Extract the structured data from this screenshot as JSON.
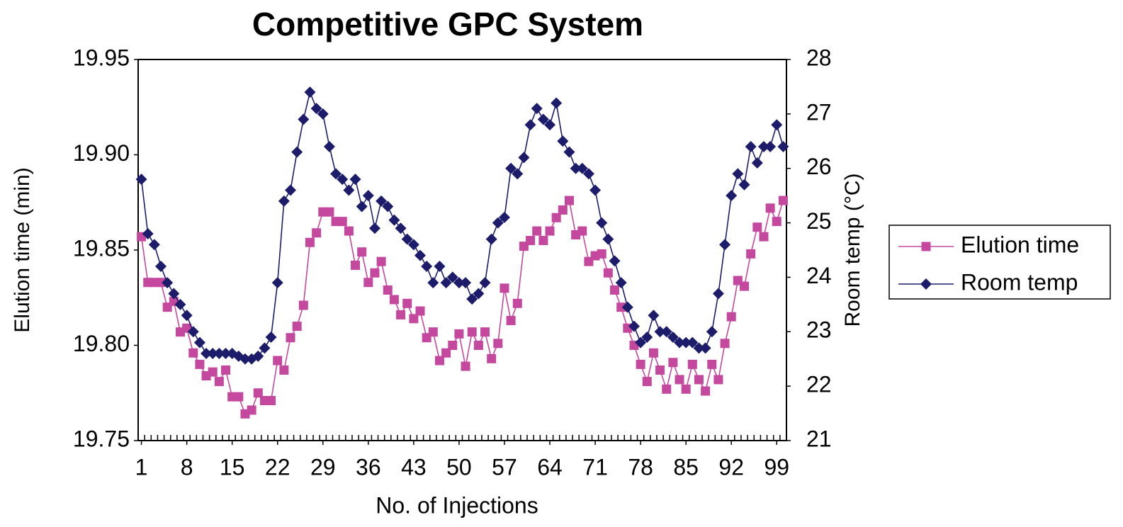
{
  "chart_data": {
    "type": "line",
    "title": "Competitive GPC System",
    "x_label": "No. of Injections",
    "y_label": "Elution time (min)",
    "y2_label": "Room temp (°C)",
    "x": [
      1,
      2,
      3,
      4,
      5,
      6,
      7,
      8,
      9,
      10,
      11,
      12,
      13,
      14,
      15,
      16,
      17,
      18,
      19,
      20,
      21,
      22,
      23,
      24,
      25,
      26,
      27,
      28,
      29,
      30,
      31,
      32,
      33,
      34,
      35,
      36,
      37,
      38,
      39,
      40,
      41,
      42,
      43,
      44,
      45,
      46,
      47,
      48,
      49,
      50,
      51,
      52,
      53,
      54,
      55,
      56,
      57,
      58,
      59,
      60,
      61,
      62,
      63,
      64,
      65,
      66,
      67,
      68,
      69,
      70,
      71,
      72,
      73,
      74,
      75,
      76,
      77,
      78,
      79,
      80,
      81,
      82,
      83,
      84,
      85,
      86,
      87,
      88,
      89,
      90,
      91,
      92,
      93,
      94,
      95,
      96,
      97,
      98,
      99,
      100
    ],
    "xlim": [
      0.5,
      100.5
    ],
    "xticks": [
      1,
      8,
      15,
      22,
      29,
      36,
      43,
      50,
      57,
      64,
      71,
      78,
      85,
      92,
      99
    ],
    "ylim": [
      19.75,
      19.95
    ],
    "yticks": [
      19.75,
      {
        "value": 19.8,
        "label": "19.80"
      },
      19.85,
      {
        "value": 19.9,
        "label": "19.90"
      },
      19.95
    ],
    "y2lim": [
      21,
      28
    ],
    "y2ticks": [
      21,
      22,
      23,
      24,
      25,
      26,
      27,
      28
    ],
    "legend": "right",
    "series": [
      {
        "name": "Elution time",
        "color": "#c5489f",
        "marker": "square",
        "values": [
          19.857,
          19.833,
          19.833,
          19.833,
          19.82,
          19.823,
          19.807,
          19.809,
          19.796,
          19.79,
          19.784,
          19.786,
          19.781,
          19.787,
          19.773,
          19.773,
          19.764,
          19.766,
          19.775,
          19.771,
          19.771,
          19.792,
          19.787,
          19.804,
          19.81,
          19.821,
          19.854,
          19.859,
          19.87,
          19.87,
          19.865,
          19.865,
          19.86,
          19.842,
          19.849,
          19.833,
          19.838,
          19.844,
          19.829,
          19.824,
          19.816,
          19.822,
          19.814,
          19.818,
          19.804,
          19.807,
          19.792,
          19.796,
          19.8,
          19.806,
          19.789,
          19.807,
          19.8,
          19.807,
          19.793,
          19.801,
          19.83,
          19.813,
          19.822,
          19.852,
          19.855,
          19.86,
          19.855,
          19.86,
          19.867,
          19.871,
          19.876,
          19.858,
          19.86,
          19.844,
          19.847,
          19.848,
          19.838,
          19.829,
          19.82,
          19.809,
          19.8,
          19.79,
          19.781,
          19.796,
          19.787,
          19.777,
          19.791,
          19.782,
          19.777,
          19.79,
          19.782,
          19.776,
          19.79,
          19.782,
          19.801,
          19.815,
          19.834,
          19.831,
          19.848,
          19.862,
          19.857,
          19.872,
          19.865,
          19.876
        ]
      },
      {
        "name": "Room temp",
        "color": "#1c1c6b",
        "marker": "diamond",
        "axis": "y2",
        "values": [
          25.8,
          24.8,
          24.6,
          24.2,
          23.9,
          23.7,
          23.5,
          23.3,
          23.0,
          22.8,
          22.6,
          22.6,
          22.6,
          22.6,
          22.6,
          22.55,
          22.5,
          22.5,
          22.55,
          22.7,
          22.9,
          23.9,
          25.4,
          25.6,
          26.3,
          26.9,
          27.4,
          27.1,
          27.0,
          26.4,
          25.9,
          25.8,
          25.6,
          25.8,
          25.3,
          25.5,
          24.9,
          25.4,
          25.3,
          25.05,
          24.9,
          24.7,
          24.6,
          24.4,
          24.2,
          23.9,
          24.2,
          23.9,
          24.0,
          23.9,
          23.9,
          23.6,
          23.7,
          23.9,
          24.7,
          25.0,
          25.1,
          26.0,
          25.9,
          26.2,
          26.8,
          27.1,
          26.9,
          26.8,
          27.2,
          26.5,
          26.3,
          26.0,
          26.0,
          25.9,
          25.6,
          25.0,
          24.7,
          24.3,
          23.9,
          23.45,
          23.1,
          22.8,
          22.9,
          23.3,
          23.0,
          23.0,
          22.9,
          22.8,
          22.8,
          22.8,
          22.7,
          22.7,
          23.0,
          23.7,
          24.6,
          25.5,
          25.9,
          25.7,
          26.4,
          26.1,
          26.4,
          26.4,
          26.8,
          26.4
        ]
      }
    ]
  }
}
